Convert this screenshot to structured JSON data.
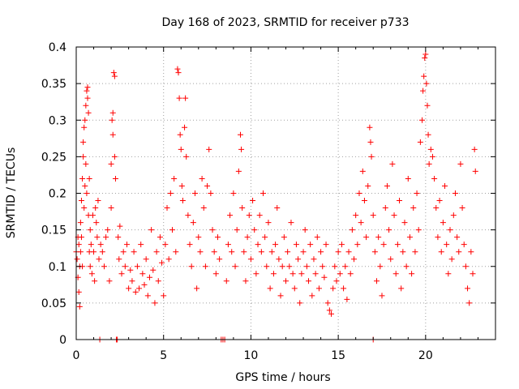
{
  "chart_data": {
    "type": "scatter",
    "title": "Day 168 of 2023, SRMTID for receiver p733",
    "xlabel": "GPS time / hours",
    "ylabel": "SRMTID / TECUs",
    "xlim": [
      0,
      24
    ],
    "ylim": [
      0,
      0.4
    ],
    "xticks": [
      0,
      5,
      10,
      15,
      20
    ],
    "xtick_labels": [
      "0",
      "5",
      "10",
      "15",
      "20"
    ],
    "yticks": [
      0,
      0.05,
      0.1,
      0.15,
      0.2,
      0.25,
      0.3,
      0.35,
      0.4
    ],
    "ytick_labels": [
      "0",
      "0.05",
      "0.1",
      "0.15",
      "0.2",
      "0.25",
      "0.3",
      "0.35",
      "0.4"
    ],
    "grid": true,
    "marker": "+",
    "color": "#ff0000",
    "series": [
      {
        "name": "SRMTID",
        "points": [
          [
            0.0,
            0.12
          ],
          [
            0.05,
            0.11
          ],
          [
            0.1,
            0.14
          ],
          [
            0.1,
            0.085
          ],
          [
            0.15,
            0.065
          ],
          [
            0.15,
            0.13
          ],
          [
            0.2,
            0.1
          ],
          [
            0.2,
            0.045
          ],
          [
            0.25,
            0.16
          ],
          [
            0.25,
            0.12
          ],
          [
            0.3,
            0.19
          ],
          [
            0.3,
            0.14
          ],
          [
            0.35,
            0.22
          ],
          [
            0.35,
            0.1
          ],
          [
            0.4,
            0.27
          ],
          [
            0.4,
            0.25
          ],
          [
            0.45,
            0.29
          ],
          [
            0.45,
            0.18
          ],
          [
            0.5,
            0.3
          ],
          [
            0.5,
            0.21
          ],
          [
            0.55,
            0.32
          ],
          [
            0.55,
            0.24
          ],
          [
            0.6,
            0.34
          ],
          [
            0.6,
            0.2
          ],
          [
            0.65,
            0.345
          ],
          [
            0.65,
            0.33
          ],
          [
            0.7,
            0.31
          ],
          [
            0.7,
            0.17
          ],
          [
            0.75,
            0.22
          ],
          [
            0.75,
            0.12
          ],
          [
            0.8,
            0.15
          ],
          [
            0.8,
            0.1
          ],
          [
            0.85,
            0.13
          ],
          [
            0.9,
            0.09
          ],
          [
            0.95,
            0.17
          ],
          [
            1.0,
            0.12
          ],
          [
            1.05,
            0.08
          ],
          [
            1.1,
            0.18
          ],
          [
            1.15,
            0.16
          ],
          [
            1.2,
            0.14
          ],
          [
            1.25,
            0.19
          ],
          [
            1.3,
            0.11
          ],
          [
            1.35,
            0.0
          ],
          [
            1.4,
            0.13
          ],
          [
            1.5,
            0.12
          ],
          [
            1.6,
            0.1
          ],
          [
            1.7,
            0.14
          ],
          [
            1.8,
            0.15
          ],
          [
            1.9,
            0.08
          ],
          [
            2.0,
            0.24
          ],
          [
            2.0,
            0.18
          ],
          [
            2.05,
            0.3
          ],
          [
            2.1,
            0.31
          ],
          [
            2.1,
            0.28
          ],
          [
            2.15,
            0.365
          ],
          [
            2.2,
            0.36
          ],
          [
            2.2,
            0.25
          ],
          [
            2.25,
            0.22
          ],
          [
            2.3,
            0.0
          ],
          [
            2.35,
            0.0
          ],
          [
            2.4,
            0.14
          ],
          [
            2.45,
            0.11
          ],
          [
            2.5,
            0.155
          ],
          [
            2.6,
            0.09
          ],
          [
            2.7,
            0.12
          ],
          [
            2.8,
            0.1
          ],
          [
            2.9,
            0.13
          ],
          [
            3.0,
            0.07
          ],
          [
            3.1,
            0.095
          ],
          [
            3.2,
            0.08
          ],
          [
            3.3,
            0.12
          ],
          [
            3.4,
            0.065
          ],
          [
            3.5,
            0.1
          ],
          [
            3.6,
            0.07
          ],
          [
            3.7,
            0.13
          ],
          [
            3.8,
            0.09
          ],
          [
            3.9,
            0.075
          ],
          [
            4.0,
            0.11
          ],
          [
            4.1,
            0.06
          ],
          [
            4.2,
            0.085
          ],
          [
            4.3,
            0.15
          ],
          [
            4.4,
            0.095
          ],
          [
            4.5,
            0.05
          ],
          [
            4.6,
            0.12
          ],
          [
            4.7,
            0.08
          ],
          [
            4.8,
            0.14
          ],
          [
            4.9,
            0.105
          ],
          [
            5.0,
            0.06
          ],
          [
            5.1,
            0.13
          ],
          [
            5.2,
            0.18
          ],
          [
            5.3,
            0.11
          ],
          [
            5.4,
            0.2
          ],
          [
            5.5,
            0.15
          ],
          [
            5.6,
            0.22
          ],
          [
            5.7,
            0.12
          ],
          [
            5.8,
            0.37
          ],
          [
            5.85,
            0.365
          ],
          [
            5.9,
            0.33
          ],
          [
            5.95,
            0.28
          ],
          [
            6.0,
            0.26
          ],
          [
            6.05,
            0.21
          ],
          [
            6.1,
            0.19
          ],
          [
            6.2,
            0.29
          ],
          [
            6.25,
            0.33
          ],
          [
            6.3,
            0.25
          ],
          [
            6.4,
            0.17
          ],
          [
            6.5,
            0.13
          ],
          [
            6.6,
            0.1
          ],
          [
            6.7,
            0.16
          ],
          [
            6.8,
            0.2
          ],
          [
            6.9,
            0.07
          ],
          [
            7.0,
            0.14
          ],
          [
            7.1,
            0.12
          ],
          [
            7.2,
            0.22
          ],
          [
            7.3,
            0.18
          ],
          [
            7.4,
            0.1
          ],
          [
            7.5,
            0.21
          ],
          [
            7.6,
            0.26
          ],
          [
            7.7,
            0.2
          ],
          [
            7.8,
            0.15
          ],
          [
            7.9,
            0.12
          ],
          [
            8.0,
            0.09
          ],
          [
            8.1,
            0.14
          ],
          [
            8.2,
            0.11
          ],
          [
            8.3,
            0.0
          ],
          [
            8.4,
            0.0
          ],
          [
            8.5,
            0.0
          ],
          [
            8.6,
            0.08
          ],
          [
            8.7,
            0.13
          ],
          [
            8.8,
            0.17
          ],
          [
            8.9,
            0.12
          ],
          [
            9.0,
            0.2
          ],
          [
            9.1,
            0.1
          ],
          [
            9.2,
            0.15
          ],
          [
            9.3,
            0.23
          ],
          [
            9.4,
            0.28
          ],
          [
            9.45,
            0.26
          ],
          [
            9.5,
            0.18
          ],
          [
            9.6,
            0.12
          ],
          [
            9.7,
            0.08
          ],
          [
            9.8,
            0.14
          ],
          [
            9.9,
            0.17
          ],
          [
            10.0,
            0.11
          ],
          [
            10.1,
            0.19
          ],
          [
            10.2,
            0.15
          ],
          [
            10.3,
            0.09
          ],
          [
            10.4,
            0.13
          ],
          [
            10.5,
            0.17
          ],
          [
            10.6,
            0.12
          ],
          [
            10.7,
            0.2
          ],
          [
            10.8,
            0.14
          ],
          [
            10.9,
            0.1
          ],
          [
            11.0,
            0.16
          ],
          [
            11.1,
            0.07
          ],
          [
            11.2,
            0.12
          ],
          [
            11.3,
            0.09
          ],
          [
            11.4,
            0.13
          ],
          [
            11.5,
            0.18
          ],
          [
            11.6,
            0.11
          ],
          [
            11.7,
            0.06
          ],
          [
            11.8,
            0.1
          ],
          [
            11.9,
            0.14
          ],
          [
            12.0,
            0.08
          ],
          [
            12.1,
            0.12
          ],
          [
            12.2,
            0.1
          ],
          [
            12.3,
            0.16
          ],
          [
            12.4,
            0.09
          ],
          [
            12.5,
            0.07
          ],
          [
            12.6,
            0.13
          ],
          [
            12.7,
            0.11
          ],
          [
            12.8,
            0.05
          ],
          [
            12.9,
            0.09
          ],
          [
            13.0,
            0.12
          ],
          [
            13.1,
            0.15
          ],
          [
            13.2,
            0.1
          ],
          [
            13.3,
            0.08
          ],
          [
            13.4,
            0.13
          ],
          [
            13.5,
            0.06
          ],
          [
            13.6,
            0.11
          ],
          [
            13.7,
            0.09
          ],
          [
            13.8,
            0.14
          ],
          [
            13.9,
            0.07
          ],
          [
            14.0,
            0.12
          ],
          [
            14.1,
            0.1
          ],
          [
            14.2,
            0.085
          ],
          [
            14.3,
            0.13
          ],
          [
            14.4,
            0.05
          ],
          [
            14.5,
            0.04
          ],
          [
            14.6,
            0.035
          ],
          [
            14.7,
            0.07
          ],
          [
            14.8,
            0.1
          ],
          [
            14.9,
            0.08
          ],
          [
            15.0,
            0.12
          ],
          [
            15.1,
            0.09
          ],
          [
            15.2,
            0.13
          ],
          [
            15.3,
            0.07
          ],
          [
            15.4,
            0.1
          ],
          [
            15.5,
            0.055
          ],
          [
            15.6,
            0.12
          ],
          [
            15.7,
            0.09
          ],
          [
            15.8,
            0.15
          ],
          [
            15.9,
            0.11
          ],
          [
            16.0,
            0.17
          ],
          [
            16.1,
            0.13
          ],
          [
            16.2,
            0.2
          ],
          [
            16.3,
            0.16
          ],
          [
            16.4,
            0.23
          ],
          [
            16.5,
            0.19
          ],
          [
            16.6,
            0.14
          ],
          [
            16.7,
            0.21
          ],
          [
            16.8,
            0.29
          ],
          [
            16.85,
            0.27
          ],
          [
            16.9,
            0.25
          ],
          [
            17.0,
            0.0
          ],
          [
            17.0,
            0.17
          ],
          [
            17.1,
            0.12
          ],
          [
            17.2,
            0.08
          ],
          [
            17.3,
            0.14
          ],
          [
            17.4,
            0.1
          ],
          [
            17.5,
            0.06
          ],
          [
            17.6,
            0.13
          ],
          [
            17.7,
            0.18
          ],
          [
            17.8,
            0.21
          ],
          [
            17.9,
            0.15
          ],
          [
            18.0,
            0.11
          ],
          [
            18.1,
            0.24
          ],
          [
            18.2,
            0.17
          ],
          [
            18.3,
            0.09
          ],
          [
            18.4,
            0.13
          ],
          [
            18.5,
            0.19
          ],
          [
            18.6,
            0.07
          ],
          [
            18.7,
            0.12
          ],
          [
            18.8,
            0.16
          ],
          [
            18.9,
            0.1
          ],
          [
            19.0,
            0.22
          ],
          [
            19.1,
            0.14
          ],
          [
            19.2,
            0.09
          ],
          [
            19.3,
            0.18
          ],
          [
            19.4,
            0.12
          ],
          [
            19.5,
            0.2
          ],
          [
            19.6,
            0.15
          ],
          [
            19.7,
            0.27
          ],
          [
            19.8,
            0.3
          ],
          [
            19.85,
            0.34
          ],
          [
            19.9,
            0.36
          ],
          [
            19.95,
            0.385
          ],
          [
            20.0,
            0.39
          ],
          [
            20.05,
            0.35
          ],
          [
            20.1,
            0.32
          ],
          [
            20.15,
            0.28
          ],
          [
            20.2,
            0.24
          ],
          [
            20.3,
            0.26
          ],
          [
            20.4,
            0.25
          ],
          [
            20.5,
            0.22
          ],
          [
            20.6,
            0.18
          ],
          [
            20.7,
            0.14
          ],
          [
            20.8,
            0.19
          ],
          [
            20.9,
            0.12
          ],
          [
            21.0,
            0.16
          ],
          [
            21.1,
            0.21
          ],
          [
            21.2,
            0.13
          ],
          [
            21.3,
            0.09
          ],
          [
            21.4,
            0.15
          ],
          [
            21.5,
            0.11
          ],
          [
            21.6,
            0.17
          ],
          [
            21.7,
            0.2
          ],
          [
            21.8,
            0.14
          ],
          [
            21.9,
            0.12
          ],
          [
            22.0,
            0.24
          ],
          [
            22.1,
            0.18
          ],
          [
            22.2,
            0.13
          ],
          [
            22.3,
            0.1
          ],
          [
            22.4,
            0.07
          ],
          [
            22.5,
            0.05
          ],
          [
            22.6,
            0.12
          ],
          [
            22.7,
            0.09
          ],
          [
            22.8,
            0.26
          ],
          [
            22.85,
            0.23
          ]
        ]
      }
    ]
  }
}
